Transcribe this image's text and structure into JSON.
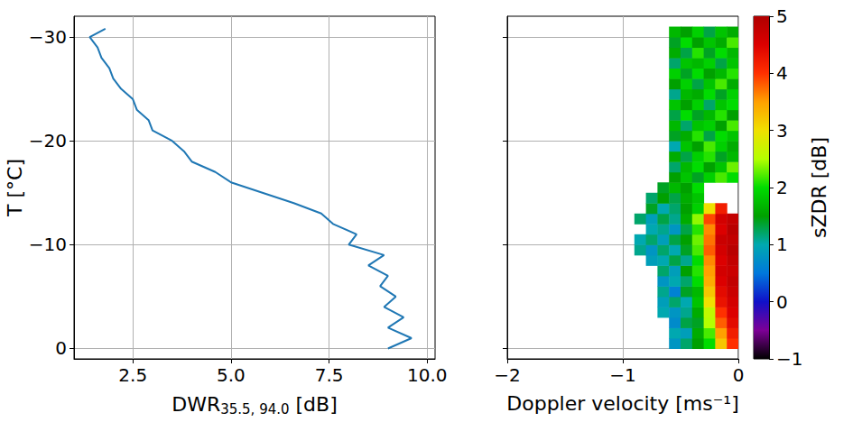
{
  "chart_data": [
    {
      "type": "line",
      "xlabel": "DWR35.5, 94.0 [dB]",
      "xlabel_subscript": "35.5, 94.0",
      "ylabel": "T [°C]",
      "xlim": [
        1.0,
        10.2
      ],
      "ylim": [
        1,
        -32
      ],
      "xticks": [
        2.5,
        {
          "value": 5,
          "label": "5.0"
        },
        7.5,
        {
          "value": 10,
          "label": "10.0"
        }
      ],
      "yticks": [
        0,
        {
          "value": -10,
          "label": "−10"
        },
        {
          "value": -20,
          "label": "−20"
        },
        {
          "value": -30,
          "label": "−30"
        }
      ],
      "grid": true,
      "series": [
        {
          "color": "#1f77b4",
          "x": [
            9.0,
            9.6,
            9.0,
            9.4,
            8.9,
            9.2,
            8.8,
            9.0,
            8.5,
            8.9,
            8.0,
            8.2,
            7.6,
            7.3,
            6.6,
            5.8,
            5.0,
            4.6,
            4.0,
            3.8,
            3.5,
            3.0,
            2.9,
            2.6,
            2.5,
            2.2,
            2.0,
            1.9,
            1.7,
            1.6,
            1.4,
            1.8
          ],
          "y": [
            0,
            -1,
            -2,
            -3,
            -4,
            -5,
            -6,
            -7,
            -8,
            -9,
            -10,
            -11,
            -12,
            -13,
            -14,
            -15,
            -16,
            -17,
            -18,
            -19,
            -20,
            -21,
            -22,
            -23,
            -24,
            -25,
            -26,
            -27,
            -28,
            -29,
            -30,
            -30.8
          ]
        }
      ]
    },
    {
      "type": "heatmap",
      "xlabel": "Doppler velocity [ms⁻¹]",
      "xlim": [
        -2,
        0
      ],
      "ylim": [
        1,
        -32
      ],
      "xticks": [
        {
          "value": -2,
          "label": "−2"
        },
        {
          "value": -1,
          "label": "−1"
        },
        0
      ],
      "yticks": [
        0,
        {
          "value": -10,
          "label": "−10"
        },
        {
          "value": -20,
          "label": "−20"
        },
        {
          "value": -30,
          "label": "−30"
        }
      ],
      "tick_labels": "x",
      "grid": true,
      "x_edges": [
        -1.0,
        -0.9,
        -0.8,
        -0.7,
        -0.6,
        -0.5,
        -0.4,
        -0.3,
        -0.2,
        -0.1,
        0
      ],
      "y_edges": [
        0,
        -1,
        -2,
        -3,
        -4,
        -5,
        -6,
        -7,
        -8,
        -9,
        -10,
        -11,
        -12,
        -13,
        -14,
        -15,
        -16,
        -17,
        -18,
        -19,
        -20,
        -21,
        -22,
        -23,
        -24,
        -25,
        -26,
        -27,
        -28,
        -29,
        -30,
        -31
      ],
      "cells": [
        [
          null,
          null,
          null,
          null,
          0.8,
          1.2,
          1.5,
          2.0,
          3.2,
          4.0
        ],
        [
          null,
          null,
          null,
          null,
          1.0,
          0.9,
          1.6,
          2.2,
          3.5,
          4.2
        ],
        [
          null,
          null,
          null,
          null,
          0.7,
          1.3,
          1.4,
          2.5,
          3.8,
          4.4
        ],
        [
          null,
          null,
          null,
          1.0,
          0.8,
          1.1,
          1.6,
          2.6,
          4.0,
          4.5
        ],
        [
          null,
          null,
          null,
          0.9,
          1.2,
          1.0,
          1.8,
          3.0,
          4.3,
          4.6
        ],
        [
          null,
          null,
          null,
          1.1,
          0.6,
          1.4,
          1.7,
          3.2,
          4.4,
          4.7
        ],
        [
          null,
          null,
          null,
          0.8,
          1.0,
          1.2,
          2.0,
          3.4,
          4.5,
          4.8
        ],
        [
          null,
          null,
          null,
          1.2,
          0.9,
          1.5,
          2.1,
          3.5,
          4.6,
          4.7
        ],
        [
          null,
          null,
          0.9,
          1.0,
          1.3,
          1.1,
          2.0,
          3.6,
          4.5,
          4.8
        ],
        [
          null,
          1.1,
          0.8,
          1.2,
          1.0,
          1.4,
          2.2,
          3.8,
          4.6,
          4.9
        ],
        [
          null,
          1.0,
          1.2,
          0.9,
          1.3,
          1.5,
          2.3,
          3.7,
          4.7,
          4.8
        ],
        [
          null,
          null,
          1.0,
          1.1,
          0.8,
          1.3,
          2.1,
          3.6,
          4.5,
          4.9
        ],
        [
          null,
          1.2,
          0.9,
          1.3,
          1.1,
          1.6,
          2.4,
          3.9,
          4.6,
          4.8
        ],
        [
          null,
          null,
          1.4,
          1.0,
          1.2,
          1.5,
          1.9,
          3.0,
          4.2,
          null
        ],
        [
          null,
          null,
          1.2,
          1.5,
          1.3,
          1.6,
          1.8,
          null,
          null,
          null
        ],
        [
          null,
          null,
          null,
          1.4,
          1.7,
          1.5,
          2.0,
          null,
          null,
          null
        ],
        [
          null,
          null,
          null,
          null,
          1.5,
          1.8,
          1.4,
          1.9,
          2.2,
          2.0
        ],
        [
          null,
          null,
          null,
          null,
          1.2,
          1.7,
          2.0,
          1.5,
          1.8,
          2.3
        ],
        [
          null,
          null,
          null,
          null,
          1.6,
          1.3,
          1.9,
          2.1,
          1.4,
          1.7
        ],
        [
          null,
          null,
          null,
          null,
          1.0,
          1.8,
          1.5,
          2.2,
          1.9,
          1.6
        ],
        [
          null,
          null,
          null,
          null,
          1.4,
          1.6,
          2.1,
          1.3,
          2.0,
          1.8
        ],
        [
          null,
          null,
          null,
          null,
          1.7,
          1.2,
          1.8,
          1.9,
          1.5,
          2.2
        ],
        [
          null,
          null,
          null,
          null,
          1.3,
          2.0,
          1.4,
          1.7,
          2.1,
          1.5
        ],
        [
          null,
          null,
          null,
          null,
          1.8,
          1.5,
          1.9,
          1.2,
          1.8,
          2.0
        ],
        [
          null,
          null,
          null,
          null,
          1.1,
          1.7,
          1.6,
          2.0,
          1.4,
          1.9
        ],
        [
          null,
          null,
          null,
          null,
          1.5,
          1.9,
          1.3,
          1.8,
          2.2,
          1.6
        ],
        [
          null,
          null,
          null,
          null,
          1.9,
          1.4,
          2.0,
          1.5,
          1.7,
          2.1
        ],
        [
          null,
          null,
          null,
          null,
          1.2,
          1.8,
          1.7,
          1.9,
          1.3,
          1.8
        ],
        [
          null,
          null,
          null,
          null,
          1.6,
          1.3,
          2.1,
          1.4,
          2.0,
          1.7
        ],
        [
          null,
          null,
          null,
          null,
          1.4,
          2.0,
          1.5,
          1.8,
          1.6,
          2.2
        ],
        [
          null,
          null,
          null,
          null,
          1.7,
          1.5,
          1.9,
          1.3,
          1.8,
          1.6
        ]
      ],
      "colorbar": {
        "label": "sZDR [dB]",
        "range": [
          -1,
          5
        ],
        "ticks": [
          {
            "value": -1,
            "label": "−1"
          },
          0,
          1,
          2,
          3,
          4,
          5
        ]
      }
    }
  ]
}
